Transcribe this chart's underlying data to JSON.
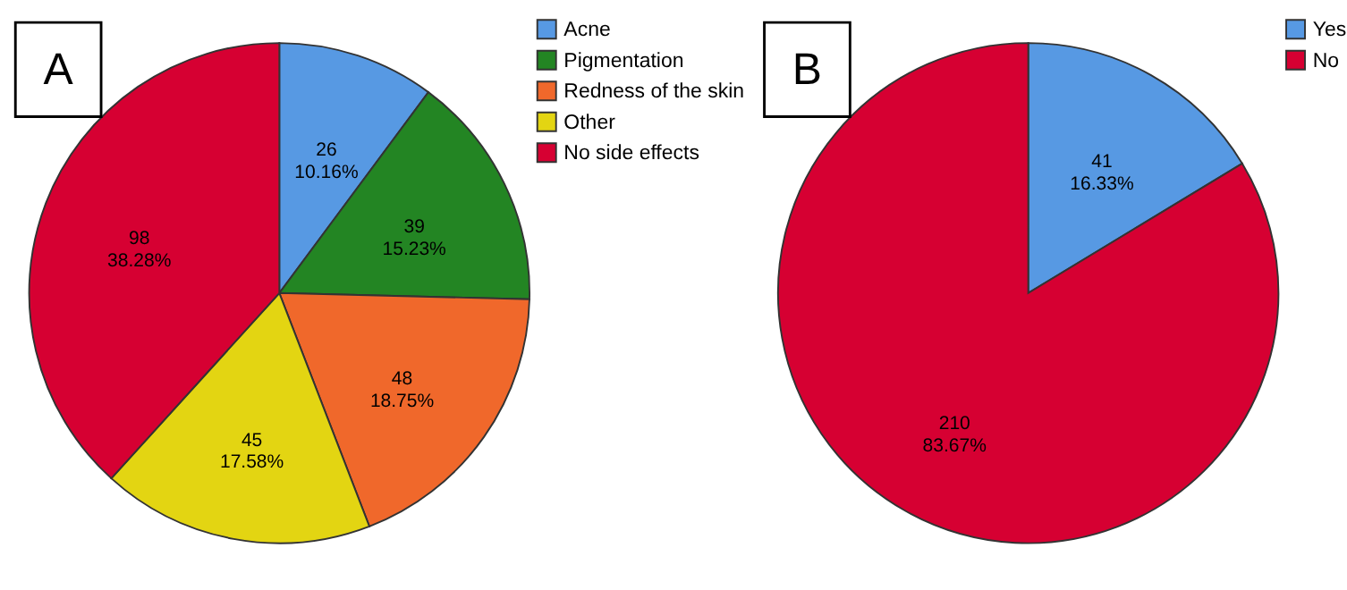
{
  "chart_data": [
    {
      "type": "pie",
      "title": "A",
      "categories": [
        "Acne",
        "Pigmentation",
        "Redness of the skin",
        "Other",
        "No side effects"
      ],
      "values": [
        26,
        39,
        48,
        45,
        98
      ],
      "colors": [
        "#5799e3",
        "#238523",
        "#f0682b",
        "#e3d512",
        "#d60032"
      ],
      "value_labels": [
        "26\n10.16%",
        "39\n15.23%",
        "48\n18.75%",
        "45\n17.58%",
        "98\n38.28%"
      ],
      "legend": "top right"
    },
    {
      "type": "pie",
      "title": "B",
      "categories": [
        "Yes",
        "No"
      ],
      "values": [
        41,
        210
      ],
      "colors": [
        "#5799e3",
        "#d60032"
      ],
      "value_labels": [
        "41\n16.33%",
        "210\n83.67%"
      ],
      "legend": "top right"
    }
  ]
}
